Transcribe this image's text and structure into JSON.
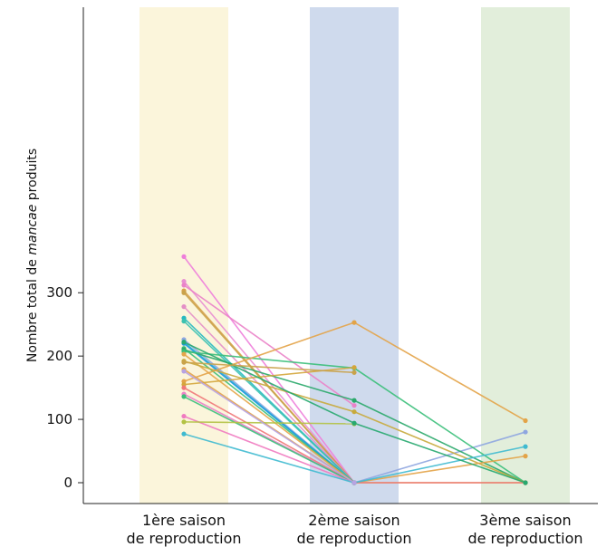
{
  "chart_data": {
    "type": "line",
    "ylabel_prefix": "Nombre total de ",
    "ylabel_italic": "mancae",
    "ylabel_suffix": " produits",
    "categories": [
      [
        "1ère saison",
        "de reproduction"
      ],
      [
        "2ème saison",
        "de reproduction"
      ],
      [
        "3ème saison",
        "de reproduction"
      ]
    ],
    "category_band_colors": [
      "#fbf5db",
      "#cfdaed",
      "#e2eedb"
    ],
    "yticks": [
      0,
      100,
      200,
      300
    ],
    "ylim": [
      -5,
      372
    ],
    "grid": false,
    "series": [
      {
        "color": "#ee7eda",
        "values": [
          357,
          0,
          null
        ]
      },
      {
        "color": "#e98fd2",
        "values": [
          318,
          0,
          null
        ]
      },
      {
        "color": "#d7a04b",
        "values": [
          303,
          0,
          0
        ]
      },
      {
        "color": "#c9a24a",
        "values": [
          300,
          0,
          null
        ]
      },
      {
        "color": "#ea82c8",
        "values": [
          312,
          122,
          null
        ]
      },
      {
        "color": "#e48fc6",
        "values": [
          278,
          0,
          null
        ]
      },
      {
        "color": "#27b9c0",
        "values": [
          260,
          0,
          null
        ]
      },
      {
        "color": "#3cc2b0",
        "values": [
          255,
          0,
          null
        ]
      },
      {
        "color": "#8fa6e0",
        "values": [
          226,
          0,
          80
        ]
      },
      {
        "color": "#2ab3d3",
        "values": [
          222,
          0,
          null
        ]
      },
      {
        "color": "#1f9be0",
        "values": [
          220,
          0,
          null
        ]
      },
      {
        "color": "#3bbf7a",
        "values": [
          212,
          0,
          null
        ]
      },
      {
        "color": "#2aa86a",
        "values": [
          210,
          130,
          0
        ]
      },
      {
        "color": "#3bbf7a",
        "values": [
          207,
          181,
          0
        ]
      },
      {
        "color": "#e6a64a",
        "values": [
          203,
          0,
          null
        ]
      },
      {
        "color": "#c8aa3c",
        "values": [
          192,
          112,
          0
        ]
      },
      {
        "color": "#e3a347",
        "values": [
          179,
          0,
          42
        ]
      },
      {
        "color": "#e3a347",
        "values": [
          160,
          253,
          98
        ]
      },
      {
        "color": "#d4a63b",
        "values": [
          155,
          182,
          null
        ]
      },
      {
        "color": "#f07878",
        "values": [
          150,
          0,
          0
        ]
      },
      {
        "color": "#ea82c8",
        "values": [
          140,
          0,
          null
        ]
      },
      {
        "color": "#3bbf7a",
        "values": [
          136,
          0,
          null
        ]
      },
      {
        "color": "#f07ac0",
        "values": [
          105,
          0,
          null
        ]
      },
      {
        "color": "#b3c244",
        "values": [
          96,
          93,
          null
        ]
      },
      {
        "color": "#3fbad0",
        "values": [
          77,
          0,
          57
        ]
      },
      {
        "color": "#27a96f",
        "values": [
          222,
          94,
          0
        ]
      },
      {
        "color": "#c9a24a",
        "values": [
          190,
          174,
          null
        ]
      },
      {
        "color": "#b7a3e3",
        "values": [
          176,
          0,
          null
        ]
      }
    ]
  }
}
